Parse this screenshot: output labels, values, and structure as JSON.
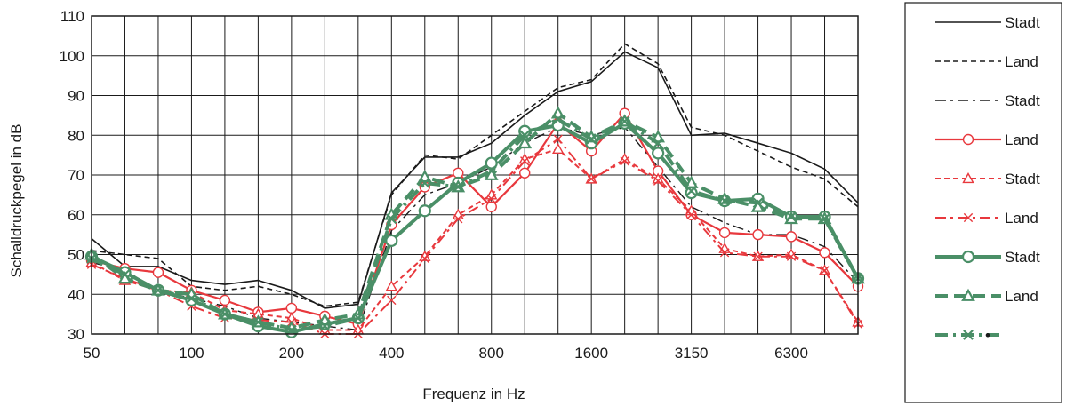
{
  "chart_data": {
    "type": "line",
    "title": "",
    "xlabel": "Frequenz in Hz",
    "ylabel": "Schalldruckpegel in dB",
    "ylim": [
      30,
      110
    ],
    "yticks": [
      30,
      40,
      50,
      60,
      70,
      80,
      90,
      100,
      110
    ],
    "xscale": "third-octave",
    "x": [
      50,
      63,
      80,
      100,
      125,
      160,
      200,
      250,
      315,
      400,
      500,
      630,
      800,
      1000,
      1250,
      1600,
      2000,
      2500,
      3150,
      4000,
      5000,
      6300,
      8000,
      10000
    ],
    "xticklabels": [
      "50",
      "100",
      "200",
      "400",
      "800",
      "1600",
      "3150",
      "6300"
    ],
    "xtick_values": [
      50,
      100,
      200,
      400,
      800,
      1600,
      3150,
      6300
    ],
    "grid": true,
    "legend_position": "right",
    "series": [
      {
        "name": "Stadt",
        "color": "#1a1a1a",
        "style": "solid",
        "marker": "none",
        "width": 1.6,
        "values": [
          54,
          47,
          47,
          43.5,
          42.5,
          43.5,
          41,
          36.5,
          37.5,
          65.5,
          74.5,
          74.5,
          78,
          85,
          91,
          93.5,
          101,
          97,
          80,
          80.5,
          78,
          75.5,
          71.5,
          63
        ]
      },
      {
        "name": "Land",
        "color": "#1a1a1a",
        "style": "dashed",
        "marker": "none",
        "width": 1.6,
        "values": [
          51,
          50,
          49,
          42,
          41,
          42,
          40,
          37,
          38,
          65,
          75,
          74,
          80,
          86,
          92,
          94,
          103,
          98,
          82,
          80,
          76,
          72,
          69,
          62
        ]
      },
      {
        "name": "Stadt",
        "color": "#1a1a1a",
        "style": "dashdot",
        "marker": "none",
        "width": 1.4,
        "values": [
          48,
          46,
          41,
          39,
          37,
          34,
          33,
          32,
          31,
          56,
          65,
          68,
          72,
          78,
          82,
          80,
          82,
          72,
          62,
          58,
          55,
          55,
          52,
          43
        ]
      },
      {
        "name": "Land",
        "color": "#e8383d",
        "style": "solid",
        "marker": "circle",
        "width": 2.2,
        "values": [
          48.5,
          46.5,
          45.5,
          41,
          38.5,
          35.5,
          36.5,
          34.5,
          32.5,
          57.5,
          67,
          70.5,
          62,
          70.5,
          83,
          76,
          85.5,
          71,
          60,
          55.5,
          55,
          54.5,
          50.5,
          42
        ]
      },
      {
        "name": "Stadt",
        "color": "#e8383d",
        "style": "dashed",
        "marker": "triangle",
        "width": 2.0,
        "values": [
          48,
          43.5,
          41,
          40.5,
          36,
          35,
          34,
          31,
          31,
          42,
          49.5,
          60,
          65,
          74,
          76.5,
          69,
          74,
          69,
          61,
          51.5,
          49.5,
          50,
          46,
          33
        ]
      },
      {
        "name": "Land",
        "color": "#e8383d",
        "style": "dashdot",
        "marker": "x",
        "width": 2.0,
        "values": [
          47.5,
          44,
          41,
          37,
          34,
          33.5,
          33,
          30,
          30,
          38.5,
          49,
          59,
          64,
          73.5,
          79,
          69,
          73.5,
          68.5,
          60,
          50.5,
          49.5,
          49.5,
          46,
          32.5
        ]
      },
      {
        "name": "Stadt",
        "color": "#4a8f67",
        "style": "solid",
        "marker": "circle",
        "width": 4.0,
        "values": [
          49.5,
          45.5,
          41,
          38.5,
          35,
          32,
          30.5,
          32.5,
          34,
          53.5,
          61,
          68,
          73,
          81,
          82.5,
          78,
          83,
          75.5,
          65.5,
          63.5,
          64,
          59.5,
          59.5,
          44
        ]
      },
      {
        "name": "Land",
        "color": "#4a8f67",
        "style": "dashed",
        "marker": "triangle",
        "width": 4.0,
        "values": [
          50,
          44,
          41,
          40,
          35,
          33,
          31.5,
          33.5,
          35,
          60,
          69.5,
          67,
          70,
          78,
          85.5,
          79.5,
          83.5,
          79.5,
          68,
          64,
          62,
          59,
          59,
          44
        ]
      },
      {
        "name": "",
        "color": "#4a8f67",
        "style": "dashdot",
        "marker": "x",
        "width": 4.0,
        "values": [
          49,
          45,
          41,
          39,
          35,
          33,
          31,
          32,
          34,
          59,
          68,
          67,
          71,
          80,
          84,
          79,
          83.5,
          78,
          66,
          63.5,
          63,
          59.5,
          59,
          44
        ]
      }
    ]
  },
  "legend": {
    "items": [
      {
        "label": "Stadt"
      },
      {
        "label": "Land"
      },
      {
        "label": "Stadt"
      },
      {
        "label": "Land"
      },
      {
        "label": "Stadt"
      },
      {
        "label": "Land"
      },
      {
        "label": "Stadt"
      },
      {
        "label": "Land"
      },
      {
        "label": "•"
      }
    ]
  }
}
